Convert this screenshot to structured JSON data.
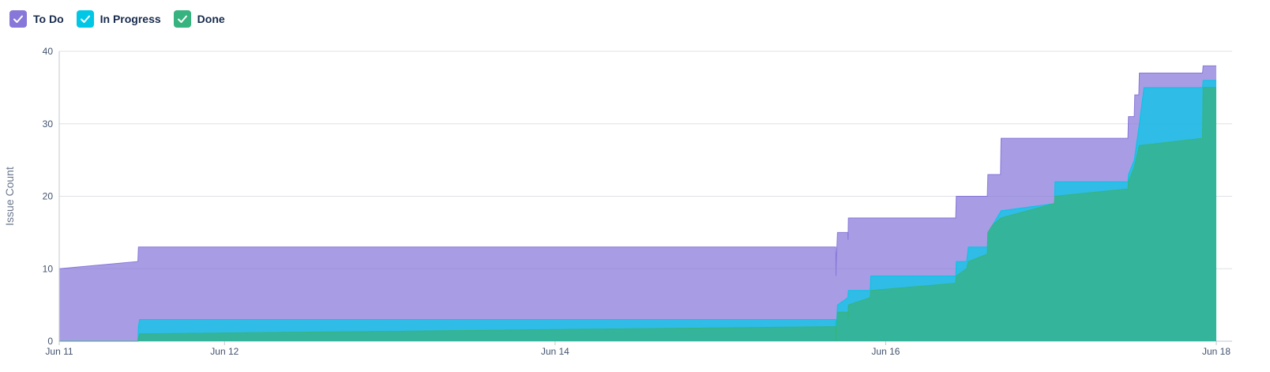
{
  "legend": {
    "todo_label": "To Do",
    "inprogress_label": "In Progress",
    "done_label": "Done"
  },
  "colors": {
    "todo": "#8777D9",
    "inprogress": "#00C7E6",
    "done": "#36B37E",
    "grid": "#DFE1E6",
    "axis": "#C1C7D0"
  },
  "chart_data": {
    "type": "area",
    "ylabel": "Issue Count",
    "xlabel": "",
    "ylim": [
      0,
      40
    ],
    "yticks": [
      0,
      10,
      20,
      30,
      40
    ],
    "xlim": [
      "2024-06-11",
      "2024-06-18"
    ],
    "xtick_labels": [
      {
        "date": "2024-06-11",
        "label": "Jun 11"
      },
      {
        "date": "2024-06-12",
        "label": "Jun 12"
      },
      {
        "date": "2024-06-14",
        "label": "Jun 14"
      },
      {
        "date": "2024-06-16",
        "label": "Jun 16"
      },
      {
        "date": "2024-06-18",
        "label": "Jun 18"
      }
    ],
    "grid": true,
    "legend_position": "top-left",
    "series": [
      {
        "name": "To Do",
        "values": [
          [
            "2024-06-11 00:00",
            10
          ],
          [
            "2024-06-11 11:25",
            11
          ],
          [
            "2024-06-11 11:30",
            13
          ],
          [
            "2024-06-15 16:45",
            13
          ],
          [
            "2024-06-15 16:47",
            9
          ],
          [
            "2024-06-15 16:50",
            11
          ],
          [
            "2024-06-15 17:00",
            15
          ],
          [
            "2024-06-15 18:30",
            15
          ],
          [
            "2024-06-15 18:32",
            14
          ],
          [
            "2024-06-15 18:35",
            17
          ],
          [
            "2024-06-16 10:10",
            17
          ],
          [
            "2024-06-16 10:15",
            20
          ],
          [
            "2024-06-16 14:45",
            20
          ],
          [
            "2024-06-16 14:50",
            23
          ],
          [
            "2024-06-16 16:40",
            23
          ],
          [
            "2024-06-16 16:45",
            28
          ],
          [
            "2024-06-17 11:10",
            28
          ],
          [
            "2024-06-17 11:15",
            31
          ],
          [
            "2024-06-17 12:05",
            31
          ],
          [
            "2024-06-17 12:10",
            34
          ],
          [
            "2024-06-17 12:45",
            34
          ],
          [
            "2024-06-17 12:50",
            37
          ],
          [
            "2024-06-17 22:00",
            37
          ],
          [
            "2024-06-17 22:05",
            38
          ],
          [
            "2024-06-18 00:00",
            38
          ]
        ]
      },
      {
        "name": "In Progress",
        "values": [
          [
            "2024-06-11 00:00",
            0
          ],
          [
            "2024-06-11 11:25",
            0
          ],
          [
            "2024-06-11 11:30",
            2
          ],
          [
            "2024-06-11 11:40",
            3
          ],
          [
            "2024-06-15 16:45",
            3
          ],
          [
            "2024-06-15 16:47",
            0
          ],
          [
            "2024-06-15 16:50",
            2
          ],
          [
            "2024-06-15 17:00",
            5
          ],
          [
            "2024-06-15 18:30",
            6
          ],
          [
            "2024-06-15 18:35",
            7
          ],
          [
            "2024-06-15 21:45",
            7
          ],
          [
            "2024-06-15 21:50",
            9
          ],
          [
            "2024-06-16 10:10",
            9
          ],
          [
            "2024-06-16 10:15",
            11
          ],
          [
            "2024-06-16 11:45",
            11
          ],
          [
            "2024-06-16 12:00",
            13
          ],
          [
            "2024-06-16 14:45",
            13
          ],
          [
            "2024-06-16 14:50",
            15
          ],
          [
            "2024-06-16 15:30",
            16
          ],
          [
            "2024-06-16 16:45",
            18
          ],
          [
            "2024-06-17 00:30",
            19
          ],
          [
            "2024-06-17 00:35",
            22
          ],
          [
            "2024-06-17 11:10",
            22
          ],
          [
            "2024-06-17 11:15",
            23
          ],
          [
            "2024-06-17 12:05",
            25
          ],
          [
            "2024-06-17 12:50",
            30
          ],
          [
            "2024-06-17 13:30",
            35
          ],
          [
            "2024-06-17 22:00",
            35
          ],
          [
            "2024-06-17 22:05",
            36
          ],
          [
            "2024-06-18 00:00",
            36
          ]
        ]
      },
      {
        "name": "Done",
        "values": [
          [
            "2024-06-11 00:00",
            0
          ],
          [
            "2024-06-11 11:25",
            0
          ],
          [
            "2024-06-11 11:40",
            1
          ],
          [
            "2024-06-15 16:45",
            2
          ],
          [
            "2024-06-15 16:47",
            0
          ],
          [
            "2024-06-15 17:00",
            4
          ],
          [
            "2024-06-15 18:30",
            4
          ],
          [
            "2024-06-15 18:32",
            3
          ],
          [
            "2024-06-15 18:35",
            5
          ],
          [
            "2024-06-15 21:45",
            6
          ],
          [
            "2024-06-15 21:50",
            7
          ],
          [
            "2024-06-16 10:10",
            8
          ],
          [
            "2024-06-16 10:15",
            9
          ],
          [
            "2024-06-16 11:45",
            10
          ],
          [
            "2024-06-16 12:00",
            11
          ],
          [
            "2024-06-16 14:45",
            12
          ],
          [
            "2024-06-16 14:50",
            15
          ],
          [
            "2024-06-16 15:30",
            16
          ],
          [
            "2024-06-16 16:45",
            17
          ],
          [
            "2024-06-17 00:30",
            19
          ],
          [
            "2024-06-17 00:35",
            20
          ],
          [
            "2024-06-17 11:10",
            21
          ],
          [
            "2024-06-17 11:15",
            22
          ],
          [
            "2024-06-17 12:05",
            24
          ],
          [
            "2024-06-17 12:50",
            27
          ],
          [
            "2024-06-17 22:00",
            28
          ],
          [
            "2024-06-17 22:05",
            35
          ],
          [
            "2024-06-18 00:00",
            35
          ]
        ]
      }
    ]
  }
}
